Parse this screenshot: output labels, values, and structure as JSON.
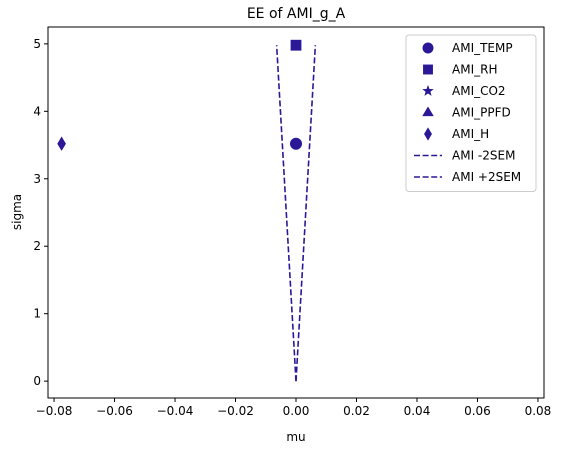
{
  "chart_data": {
    "type": "scatter",
    "title": "EE of AMI_g_A",
    "xlabel": "mu",
    "ylabel": "sigma",
    "xlim": [
      -0.082,
      0.082
    ],
    "ylim": [
      -0.25,
      5.25
    ],
    "xticks": [
      -0.08,
      -0.06,
      -0.04,
      -0.02,
      0.0,
      0.02,
      0.04,
      0.06,
      0.08
    ],
    "xtick_labels": [
      "−0.08",
      "−0.06",
      "−0.04",
      "−0.02",
      "0.00",
      "0.02",
      "0.04",
      "0.06",
      "0.08"
    ],
    "yticks": [
      0,
      1,
      2,
      3,
      4,
      5
    ],
    "ytick_labels": [
      "0",
      "1",
      "2",
      "3",
      "4",
      "5"
    ],
    "grid": false,
    "legend_position": "top-right",
    "color": "#2a1896",
    "series": [
      {
        "name": "AMI_TEMP",
        "marker": "circle",
        "x": [
          0.0
        ],
        "y": [
          3.52
        ]
      },
      {
        "name": "AMI_RH",
        "marker": "square",
        "x": [
          0.0
        ],
        "y": [
          4.98
        ]
      },
      {
        "name": "AMI_CO2",
        "marker": "star",
        "x": [],
        "y": []
      },
      {
        "name": "AMI_PPFD",
        "marker": "triangle",
        "x": [],
        "y": []
      },
      {
        "name": "AMI_H",
        "marker": "diamond",
        "x": [
          -0.0775
        ],
        "y": [
          3.52
        ]
      },
      {
        "name": "AMI -2SEM",
        "marker": "dashed-line",
        "x": [
          0.0,
          -0.0064
        ],
        "y": [
          0.0,
          4.98
        ]
      },
      {
        "name": "AMI +2SEM",
        "marker": "dashed-line",
        "x": [
          0.0,
          0.0064
        ],
        "y": [
          0.0,
          4.98
        ]
      }
    ]
  }
}
